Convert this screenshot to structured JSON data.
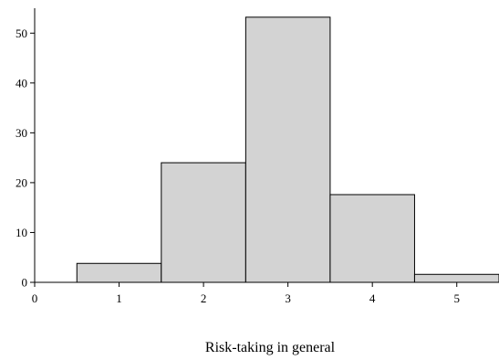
{
  "chart_data": {
    "type": "bar",
    "xlabel": "Risk-taking in general",
    "ylabel": "",
    "xlim": [
      0,
      5.5
    ],
    "ylim": [
      0,
      55
    ],
    "x_ticks": [
      0,
      1,
      2,
      3,
      4,
      5
    ],
    "y_ticks": [
      0,
      10,
      20,
      30,
      40,
      50
    ],
    "bin_width": 1,
    "categories": [
      "1",
      "2",
      "3",
      "4",
      "5"
    ],
    "bin_centers": [
      1,
      2,
      3,
      4,
      5
    ],
    "values": [
      3.8,
      24.0,
      53.2,
      17.6,
      1.6
    ],
    "bar_color": "#d3d3d3",
    "bar_edge_color": "#000000",
    "grid": false
  }
}
